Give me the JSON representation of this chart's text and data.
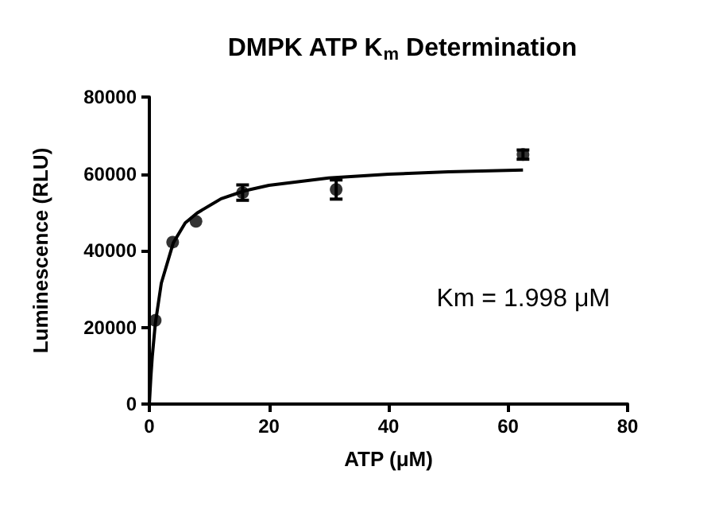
{
  "chart_data": {
    "type": "scatter",
    "title": "DMPK ATP K$_{m}$ Determination",
    "xlabel": "ATP (μM)",
    "ylabel": "Luminescence (RLU)",
    "xlim": [
      0,
      80
    ],
    "xticks": [
      0,
      20,
      40,
      60,
      80
    ],
    "ylim": [
      0,
      80000
    ],
    "yticks": [
      0,
      20000,
      40000,
      60000,
      80000
    ],
    "grid": false,
    "annotations": [
      "Km = 1.998 μM"
    ],
    "series": [
      {
        "color": "#000000",
        "marker": "circle",
        "x": [
          0.98,
          3.9,
          7.8,
          15.6,
          31.25,
          62.5
        ],
        "values": [
          21800,
          42200,
          47600,
          55100,
          55900,
          65000
        ],
        "errors": [
          null,
          null,
          null,
          2000,
          2500,
          1200
        ]
      },
      {
        "type": "line",
        "color": "#000000",
        "marker": "none",
        "line_style": "solid",
        "x": [
          0,
          0.25,
          0.5,
          1,
          2,
          4,
          6,
          8,
          12,
          16,
          20,
          30,
          40,
          50,
          62.5
        ],
        "values": [
          0,
          7000,
          12600,
          21000,
          31500,
          42000,
          47200,
          49800,
          53500,
          55600,
          57000,
          58900,
          59900,
          60500,
          61000
        ]
      }
    ]
  }
}
